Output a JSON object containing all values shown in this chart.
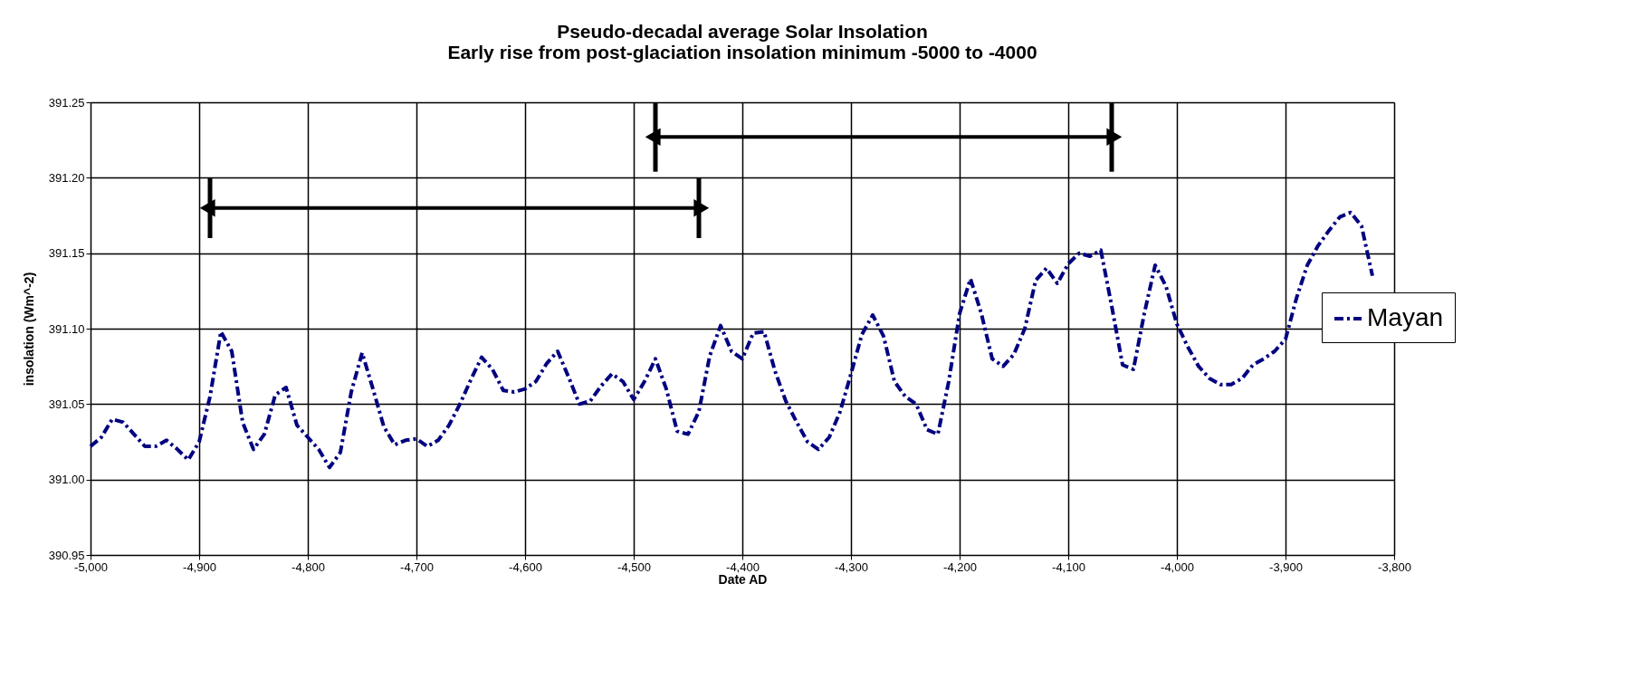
{
  "chart_data": {
    "type": "line",
    "title": [
      "Pseudo-decadal average Solar Insolation",
      "Early rise from post-glaciation insolation minimum -5000 to -4000"
    ],
    "xlabel": "Date AD",
    "ylabel": "insolation (Wm^-2)",
    "x": [
      -5000,
      -4990,
      -4980,
      -4970,
      -4960,
      -4950,
      -4940,
      -4930,
      -4920,
      -4910,
      -4900,
      -4890,
      -4880,
      -4870,
      -4860,
      -4850,
      -4840,
      -4830,
      -4820,
      -4810,
      -4800,
      -4790,
      -4780,
      -4770,
      -4760,
      -4750,
      -4740,
      -4730,
      -4720,
      -4710,
      -4700,
      -4690,
      -4680,
      -4670,
      -4660,
      -4650,
      -4640,
      -4630,
      -4620,
      -4610,
      -4600,
      -4590,
      -4580,
      -4570,
      -4560,
      -4550,
      -4540,
      -4530,
      -4520,
      -4510,
      -4500,
      -4490,
      -4480,
      -4470,
      -4460,
      -4450,
      -4440,
      -4430,
      -4420,
      -4410,
      -4400,
      -4390,
      -4380,
      -4370,
      -4360,
      -4350,
      -4340,
      -4330,
      -4320,
      -4310,
      -4300,
      -4290,
      -4280,
      -4270,
      -4260,
      -4250,
      -4240,
      -4230,
      -4220,
      -4210,
      -4200,
      -4190,
      -4180,
      -4170,
      -4160,
      -4150,
      -4140,
      -4130,
      -4120,
      -4110,
      -4100,
      -4090,
      -4080,
      -4070,
      -4060,
      -4050,
      -4040,
      -4030,
      -4020,
      -4010,
      -4000,
      -3990,
      -3980,
      -3970,
      -3960,
      -3950,
      -3940,
      -3930,
      -3920,
      -3910,
      -3900,
      -3890,
      -3880,
      -3870,
      -3860,
      -3850,
      -3840,
      -3830,
      -3820
    ],
    "series": [
      {
        "name": "Mayan",
        "color": "#000080",
        "values": [
          391.022,
          391.028,
          391.04,
          391.038,
          391.03,
          391.022,
          391.022,
          391.026,
          391.02,
          391.013,
          391.025,
          391.055,
          391.098,
          391.085,
          391.038,
          391.02,
          391.03,
          391.056,
          391.061,
          391.036,
          391.028,
          391.02,
          391.008,
          391.018,
          391.058,
          391.084,
          391.06,
          391.035,
          391.023,
          391.026,
          391.027,
          391.022,
          391.026,
          391.036,
          391.05,
          391.066,
          391.081,
          391.073,
          391.059,
          391.058,
          391.06,
          391.065,
          391.077,
          391.085,
          391.068,
          391.05,
          391.052,
          391.062,
          391.07,
          391.065,
          391.053,
          391.065,
          391.08,
          391.06,
          391.032,
          391.03,
          391.045,
          391.082,
          391.102,
          391.085,
          391.08,
          391.097,
          391.098,
          391.072,
          391.052,
          391.038,
          391.025,
          391.02,
          391.028,
          391.045,
          391.07,
          391.096,
          391.109,
          391.095,
          391.065,
          391.055,
          391.05,
          391.033,
          391.03,
          391.065,
          391.11,
          391.133,
          391.11,
          391.08,
          391.075,
          391.083,
          391.1,
          391.132,
          391.14,
          391.13,
          391.143,
          391.15,
          391.148,
          391.152,
          391.115,
          391.076,
          391.073,
          391.11,
          391.142,
          391.128,
          391.103,
          391.088,
          391.075,
          391.067,
          391.063,
          391.063,
          391.067,
          391.076,
          391.08,
          391.085,
          391.093,
          391.12,
          391.142,
          391.155,
          391.165,
          391.174,
          391.177,
          391.168,
          391.135
        ]
      },
      {
        "color": "#000000",
        "x": [
          -4890,
          -4440
        ],
        "values": [
          391.18,
          391.18
        ],
        "errors": [
          0.02,
          0.02
        ],
        "line_style": "solid",
        "marker": "triangle"
      },
      {
        "color": "#000000",
        "x": [
          -4480,
          -4060
        ],
        "values": [
          391.227,
          391.227
        ],
        "errors": [
          0.023,
          0.023
        ],
        "line_style": "solid",
        "marker": "triangle"
      }
    ],
    "xlim": [
      -5000,
      -3800
    ],
    "xticks": [
      {
        "value": -5000,
        "label": "-5,000"
      },
      {
        "value": -4900,
        "label": "-4,900"
      },
      {
        "value": -4800,
        "label": "-4,800"
      },
      {
        "value": -4700,
        "label": "-4,700"
      },
      {
        "value": -4600,
        "label": "-4,600"
      },
      {
        "value": -4500,
        "label": "-4,500"
      },
      {
        "value": -4400,
        "label": "-4,400"
      },
      {
        "value": -4300,
        "label": "-4,300"
      },
      {
        "value": -4200,
        "label": "-4,200"
      },
      {
        "value": -4100,
        "label": "-4,100"
      },
      {
        "value": -4000,
        "label": "-4,000"
      },
      {
        "value": -3900,
        "label": "-3,900"
      },
      {
        "value": -3800,
        "label": "-3,800"
      }
    ],
    "ylim": [
      390.95,
      391.25
    ],
    "yticks": [
      {
        "value": 390.95,
        "label": "390.95"
      },
      {
        "value": 391.0,
        "label": "391.00"
      },
      {
        "value": 391.05,
        "label": "391.05"
      },
      {
        "value": 391.1,
        "label": "391.10"
      },
      {
        "value": 391.15,
        "label": "391.15"
      },
      {
        "value": 391.2,
        "label": "391.20"
      },
      {
        "value": 391.25,
        "label": "391.25"
      }
    ],
    "grid": true,
    "legend": "right",
    "marker": "none",
    "line_style": "dashed"
  }
}
